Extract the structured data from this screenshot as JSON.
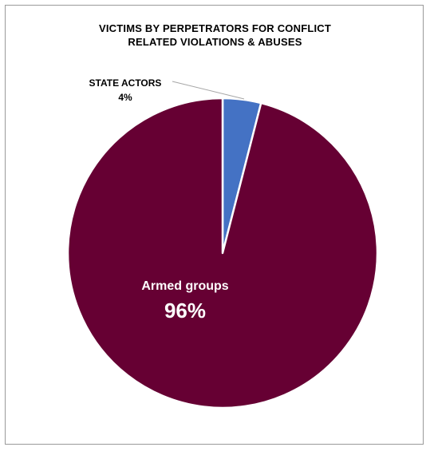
{
  "chart_data": {
    "type": "pie",
    "title": {
      "line1": "VICTIMS BY  PERPETRATORS FOR CONFLICT",
      "line2": "RELATED VIOLATIONS & ABUSES"
    },
    "slices": [
      {
        "label": "STATE ACTORS",
        "value": 4,
        "value_label": "4%",
        "color": "#4472C4"
      },
      {
        "label": "Armed groups",
        "value": 96,
        "value_label": "96%",
        "color": "#660033"
      }
    ],
    "legend": "none"
  }
}
